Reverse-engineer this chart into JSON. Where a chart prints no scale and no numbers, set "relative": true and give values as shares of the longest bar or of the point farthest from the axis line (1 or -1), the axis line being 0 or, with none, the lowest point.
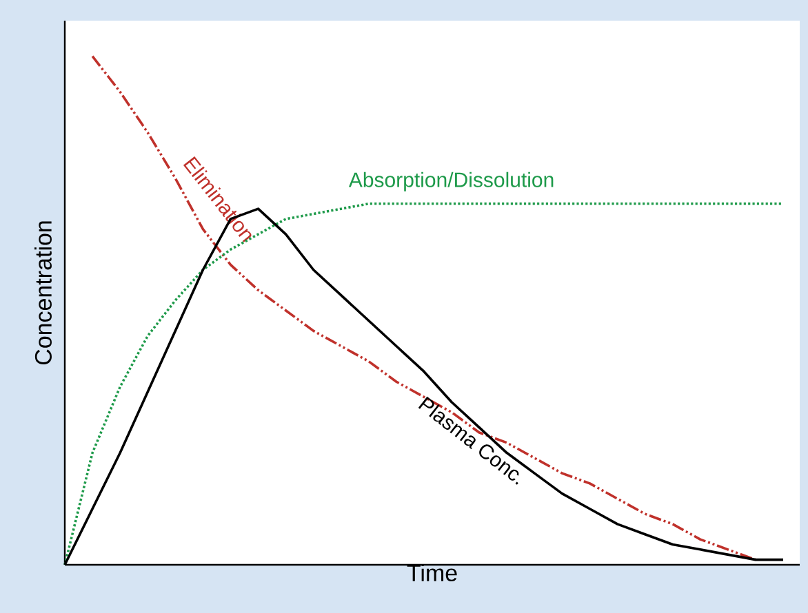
{
  "chart_data": {
    "type": "line",
    "relative": true,
    "xlabel": "Time",
    "ylabel": "Concentration",
    "categories": [
      null,
      null,
      null,
      null,
      null,
      null,
      null,
      null,
      null,
      null,
      null,
      null,
      null,
      null,
      null,
      null,
      null,
      null,
      null,
      null,
      null,
      null,
      null,
      null,
      null,
      null,
      null
    ],
    "series": [
      {
        "name": "Elimination",
        "color": "#c0312b",
        "line_style": "dashed",
        "values": [
          null,
          1.0,
          0.93,
          0.85,
          0.76,
          0.66,
          0.59,
          0.54,
          0.5,
          0.46,
          0.43,
          0.4,
          0.36,
          0.33,
          0.3,
          0.26,
          0.24,
          0.21,
          0.18,
          0.16,
          0.13,
          0.1,
          0.08,
          0.05,
          0.03,
          0.01,
          null
        ]
      },
      {
        "name": "Absorption/Dissolution",
        "color": "#1e9a4a",
        "line_style": "dotted",
        "values": [
          0,
          0.22,
          0.35,
          0.45,
          0.52,
          0.58,
          0.62,
          0.65,
          0.68,
          0.69,
          0.7,
          0.71,
          0.71,
          0.71,
          0.71,
          0.71,
          0.71,
          0.71,
          0.71,
          0.71,
          0.71,
          0.71,
          0.71,
          0.71,
          0.71,
          0.71,
          0.71
        ]
      },
      {
        "name": "Plasma Conc.",
        "color": "#000000",
        "line_style": "solid",
        "values": [
          0,
          0.11,
          0.22,
          0.34,
          0.46,
          0.58,
          0.68,
          0.7,
          0.65,
          0.58,
          0.53,
          0.48,
          0.43,
          0.38,
          0.32,
          0.27,
          0.22,
          0.18,
          0.14,
          0.11,
          0.08,
          0.06,
          0.04,
          0.03,
          0.02,
          0.01,
          0.01
        ]
      }
    ]
  }
}
